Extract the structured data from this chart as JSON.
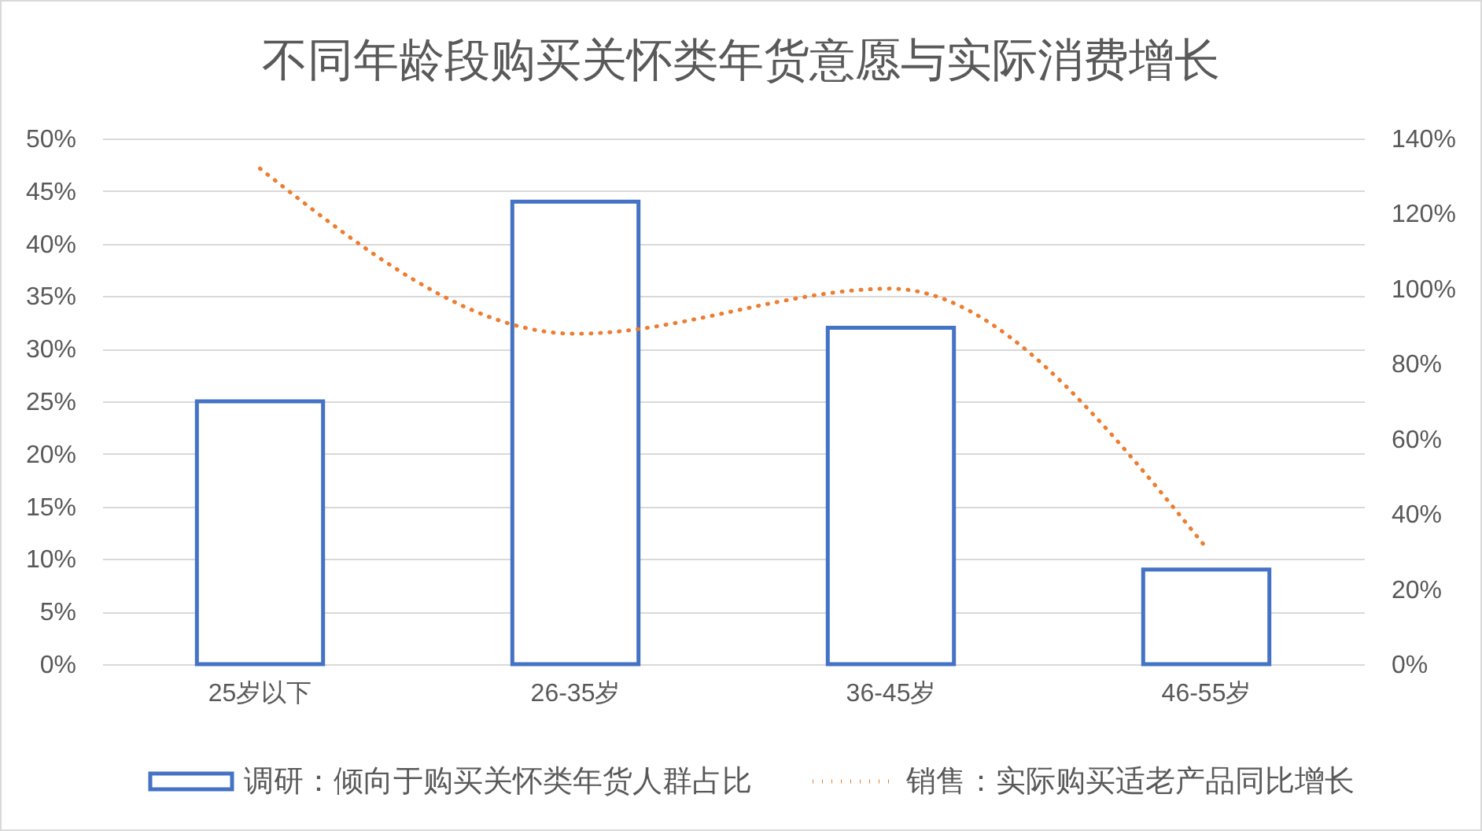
{
  "chart_data": {
    "type": "bar",
    "title": "不同年龄段购买关怀类年货意愿与实际消费增长",
    "categories": [
      "25岁以下",
      "26-35岁",
      "36-45岁",
      "46-55岁"
    ],
    "series": [
      {
        "name": "调研：倾向于购买关怀类年货人群占比",
        "color": "#4472c4",
        "values": [
          25,
          44,
          32,
          9
        ]
      },
      {
        "name": "销售：实际购买适老产品同比增长",
        "type": "line",
        "axis": "y2",
        "color": "#ed7d31",
        "line_style": "dotted",
        "values": [
          132,
          88,
          100,
          31
        ]
      }
    ],
    "ylim": [
      0,
      50
    ],
    "yticks": [
      {
        "value": 0,
        "label": "0%"
      },
      {
        "value": 5,
        "label": "5%"
      },
      {
        "value": 10,
        "label": "10%"
      },
      {
        "value": 15,
        "label": "15%"
      },
      {
        "value": 20,
        "label": "20%"
      },
      {
        "value": 25,
        "label": "25%"
      },
      {
        "value": 30,
        "label": "30%"
      },
      {
        "value": 35,
        "label": "35%"
      },
      {
        "value": 40,
        "label": "40%"
      },
      {
        "value": 45,
        "label": "45%"
      },
      {
        "value": 50,
        "label": "50%"
      }
    ],
    "y2lim": [
      0,
      140
    ],
    "y2ticks": [
      {
        "value": 0,
        "label": "0%"
      },
      {
        "value": 20,
        "label": "20%"
      },
      {
        "value": 40,
        "label": "40%"
      },
      {
        "value": 60,
        "label": "60%"
      },
      {
        "value": 80,
        "label": "80%"
      },
      {
        "value": 100,
        "label": "100%"
      },
      {
        "value": 120,
        "label": "120%"
      },
      {
        "value": 140,
        "label": "140%"
      }
    ],
    "grid": "y",
    "legend": "bottom"
  }
}
